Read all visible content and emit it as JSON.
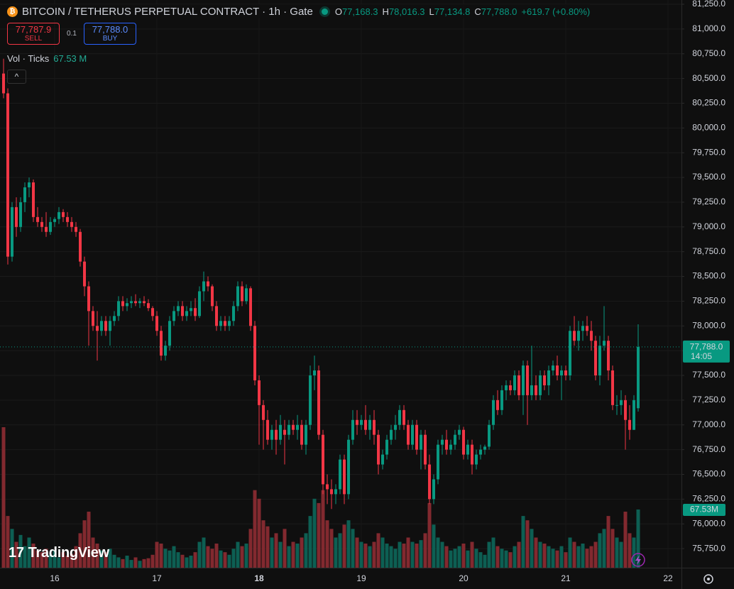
{
  "chart_data": {
    "type": "candlestick",
    "title": "BITCOIN / TETHERUS PERPETUAL CONTRACT · 1h · Gate",
    "ohlc_legend": [
      {
        "key": "O",
        "value": "77,168.3"
      },
      {
        "key": "H",
        "value": "78,016.3"
      },
      {
        "key": "L",
        "value": "77,134.8"
      },
      {
        "key": "C",
        "value": "77,788.0"
      }
    ],
    "change": "+619.7 (+0.80%)",
    "sell": {
      "price": "77,787.9",
      "label": "SELL"
    },
    "spread": "0.1",
    "buy": {
      "price": "77,788.0",
      "label": "BUY"
    },
    "up_color": "#089981",
    "down_color": "#f23645",
    "categories": [
      null,
      null,
      null,
      null,
      null,
      null,
      null,
      null,
      null,
      null,
      null,
      null,
      "16",
      null,
      null,
      null,
      null,
      null,
      null,
      null,
      null,
      null,
      null,
      null,
      null,
      null,
      null,
      null,
      null,
      null,
      null,
      null,
      null,
      null,
      null,
      null,
      "17",
      null,
      null,
      null,
      null,
      null,
      null,
      null,
      null,
      null,
      null,
      null,
      null,
      null,
      null,
      null,
      null,
      null,
      null,
      null,
      null,
      null,
      null,
      null,
      "18",
      null,
      null,
      null,
      null,
      null,
      null,
      null,
      null,
      null,
      null,
      null,
      null,
      null,
      null,
      null,
      null,
      null,
      null,
      null,
      null,
      null,
      null,
      null,
      "19",
      null,
      null,
      null,
      null,
      null,
      null,
      null,
      null,
      null,
      null,
      null,
      null,
      null,
      null,
      null,
      null,
      null,
      null,
      null,
      null,
      null,
      null,
      null,
      "20",
      null,
      null,
      null,
      null,
      null,
      null,
      null,
      null,
      null,
      null,
      null,
      null,
      null,
      null,
      null,
      null,
      null,
      null,
      null,
      null,
      null,
      null,
      null,
      "21",
      null,
      null,
      null,
      null,
      null,
      null,
      null,
      null,
      null,
      null,
      null,
      null,
      null,
      null,
      null,
      null,
      null,
      null,
      null,
      null,
      null,
      null,
      null,
      "22",
      null,
      null,
      null
    ],
    "open": [
      80550,
      80350,
      78700,
      79200,
      79000,
      79250,
      79400,
      79450,
      79100,
      79050,
      79000,
      78950,
      79050,
      79080,
      79150,
      79100,
      79050,
      79000,
      78950,
      78650,
      78400,
      78150,
      78000,
      77950,
      78050,
      77950,
      78050,
      78100,
      78250,
      78200,
      78230,
      78250,
      78230,
      78250,
      78230,
      78180,
      78100,
      77950,
      77700,
      77800,
      78050,
      78150,
      78200,
      78100,
      78150,
      78180,
      78100,
      78350,
      78450,
      78400,
      78200,
      78000,
      78050,
      78000,
      78050,
      78200,
      78400,
      78250,
      78380,
      78000,
      77450,
      77200,
      77050,
      76850,
      76950,
      76850,
      76950,
      76900,
      77000,
      76950,
      77000,
      76800,
      77000,
      77500,
      77550,
      76900,
      76400,
      76350,
      76300,
      76350,
      76650,
      76300,
      76850,
      77050,
      77000,
      77050,
      76950,
      77050,
      76900,
      76600,
      76700,
      76850,
      76950,
      77000,
      77150,
      77000,
      76800,
      77000,
      76750,
      76900,
      76600,
      76250,
      76450,
      76800,
      76850,
      76750,
      76800,
      76900,
      76950,
      76700,
      76800,
      76600,
      76700,
      76750,
      76780,
      77000,
      77250,
      77150,
      77350,
      77400,
      77350,
      77500,
      77300,
      77600,
      77300,
      77400,
      77300,
      77500,
      77400,
      77550,
      77600,
      77500,
      77550,
      77500,
      77950,
      77850,
      77950,
      78000,
      77950,
      77850,
      77500,
      77800,
      77850,
      77550,
      77200,
      77200,
      77250,
      77050,
      76950,
      77168.3,
      null,
      null,
      null,
      null,
      null,
      null,
      null,
      null,
      null,
      null
    ],
    "high": [
      80700,
      80400,
      79250,
      79300,
      79300,
      79450,
      79500,
      79480,
      79200,
      79100,
      79150,
      79100,
      79100,
      79200,
      79180,
      79150,
      79100,
      79050,
      78980,
      78700,
      78450,
      78200,
      78150,
      78100,
      78100,
      78100,
      78150,
      78300,
      78300,
      78280,
      78300,
      78320,
      78280,
      78300,
      78270,
      78200,
      78150,
      78000,
      77850,
      78100,
      78200,
      78250,
      78250,
      78200,
      78250,
      78280,
      78400,
      78550,
      78500,
      78420,
      78250,
      78100,
      78100,
      78100,
      78250,
      78450,
      78450,
      78420,
      78400,
      78050,
      77500,
      77250,
      77150,
      77000,
      77050,
      77100,
      77050,
      77050,
      77050,
      77100,
      77050,
      77050,
      77600,
      77700,
      77600,
      76950,
      76500,
      76450,
      76400,
      76700,
      76700,
      76900,
      77150,
      77150,
      77100,
      77200,
      77100,
      77150,
      76950,
      76750,
      76900,
      77000,
      77100,
      77200,
      77200,
      77050,
      77050,
      77050,
      76950,
      76950,
      76700,
      76500,
      76850,
      76900,
      76950,
      76850,
      76950,
      77000,
      76980,
      76850,
      76850,
      76750,
      76800,
      76800,
      77050,
      77300,
      77350,
      77400,
      77450,
      77450,
      77550,
      77550,
      77650,
      77650,
      77800,
      77500,
      77550,
      77550,
      77600,
      77650,
      77700,
      77600,
      77600,
      78000,
      78100,
      78050,
      78050,
      78100,
      78050,
      77900,
      77900,
      78200,
      77900,
      77600,
      77300,
      77350,
      77300,
      77200,
      77300,
      78016.3,
      null,
      null,
      null,
      null,
      null,
      null,
      null,
      null,
      null,
      null
    ],
    "low": [
      80300,
      78620,
      78650,
      78900,
      78950,
      79150,
      79300,
      79050,
      79000,
      78950,
      78900,
      78920,
      79000,
      79030,
      79050,
      79000,
      78950,
      78900,
      78600,
      78300,
      77800,
      77950,
      77650,
      77900,
      77900,
      77800,
      78000,
      78050,
      78150,
      78150,
      78180,
      78200,
      78180,
      78200,
      78150,
      78050,
      77900,
      77650,
      77650,
      77750,
      78000,
      78100,
      78050,
      78050,
      78100,
      78050,
      78080,
      78250,
      78350,
      78150,
      77950,
      77950,
      77950,
      77950,
      78000,
      78150,
      78200,
      78220,
      77950,
      77400,
      76800,
      76750,
      76800,
      76750,
      76700,
      76800,
      76600,
      76850,
      76900,
      76850,
      76750,
      76700,
      76950,
      77350,
      76850,
      76300,
      76200,
      76150,
      76200,
      76300,
      76200,
      76250,
      76800,
      76900,
      76950,
      76900,
      76850,
      76800,
      76500,
      76550,
      76650,
      76800,
      76850,
      76950,
      76950,
      76750,
      76750,
      76700,
      76550,
      76550,
      76200,
      76200,
      76400,
      76700,
      76700,
      76700,
      76750,
      76850,
      76650,
      76650,
      76500,
      76550,
      76650,
      76700,
      76750,
      76950,
      77100,
      77100,
      77250,
      77300,
      77300,
      77250,
      77100,
      77000,
      77250,
      77250,
      77250,
      77350,
      77300,
      77500,
      77450,
      77250,
      77450,
      77450,
      77800,
      77750,
      77850,
      77900,
      77750,
      77450,
      77400,
      77750,
      77450,
      77150,
      77100,
      77100,
      76750,
      76850,
      76950,
      77134.8,
      null,
      null,
      null,
      null,
      null,
      null,
      null,
      null,
      null,
      null
    ],
    "close": [
      80350,
      78700,
      79200,
      79000,
      79250,
      79400,
      79450,
      79100,
      79050,
      79000,
      78950,
      79050,
      79080,
      79150,
      79100,
      79050,
      79000,
      78950,
      78650,
      78400,
      78150,
      78000,
      77950,
      78050,
      77950,
      78050,
      78100,
      78250,
      78200,
      78230,
      78250,
      78230,
      78250,
      78230,
      78180,
      78100,
      77950,
      77700,
      77800,
      78050,
      78150,
      78200,
      78100,
      78150,
      78180,
      78100,
      78350,
      78450,
      78400,
      78200,
      78000,
      78050,
      78000,
      78050,
      78200,
      78400,
      78250,
      78380,
      78000,
      77450,
      77200,
      77050,
      76850,
      76950,
      76850,
      77000,
      76900,
      77000,
      76950,
      77000,
      76800,
      77000,
      77500,
      77550,
      76900,
      76400,
      76350,
      76300,
      76350,
      76650,
      76300,
      76850,
      77050,
      77000,
      77050,
      76950,
      77050,
      76900,
      76600,
      76700,
      76850,
      76950,
      77000,
      77150,
      77000,
      76800,
      77000,
      76750,
      76900,
      76600,
      76250,
      76450,
      76800,
      76850,
      76750,
      76800,
      76900,
      76950,
      76700,
      76800,
      76600,
      76700,
      76750,
      76780,
      77000,
      77250,
      77150,
      77350,
      77400,
      77350,
      77500,
      77300,
      77600,
      77300,
      77400,
      77300,
      77500,
      77400,
      77550,
      77600,
      77500,
      77550,
      77500,
      77950,
      77850,
      77950,
      78000,
      77950,
      77850,
      77500,
      77800,
      77850,
      77550,
      77200,
      77200,
      77250,
      77050,
      76950,
      77250,
      77788.0,
      null,
      null,
      null,
      null,
      null,
      null,
      null,
      null,
      null,
      null
    ],
    "volume": {
      "name": "Vol · Ticks",
      "values": [
        163,
        60,
        45,
        30,
        38,
        25,
        35,
        28,
        20,
        18,
        22,
        15,
        20,
        12,
        18,
        14,
        16,
        25,
        40,
        55,
        65,
        35,
        28,
        20,
        18,
        22,
        15,
        12,
        10,
        14,
        9,
        12,
        8,
        10,
        11,
        15,
        30,
        28,
        22,
        20,
        25,
        18,
        15,
        12,
        14,
        18,
        30,
        35,
        25,
        22,
        28,
        20,
        18,
        15,
        22,
        30,
        25,
        28,
        45,
        90,
        80,
        55,
        48,
        35,
        40,
        30,
        45,
        25,
        30,
        28,
        35,
        40,
        60,
        80,
        75,
        90,
        55,
        45,
        35,
        40,
        50,
        55,
        45,
        35,
        30,
        28,
        25,
        30,
        40,
        35,
        28,
        25,
        22,
        30,
        28,
        35,
        30,
        28,
        32,
        40,
        75,
        50,
        35,
        30,
        25,
        20,
        22,
        25,
        28,
        20,
        30,
        22,
        18,
        15,
        30,
        35,
        25,
        22,
        20,
        18,
        25,
        30,
        60,
        55,
        45,
        35,
        30,
        28,
        25,
        22,
        20,
        25,
        18,
        35,
        30,
        25,
        28,
        22,
        25,
        30,
        40,
        45,
        60,
        45,
        35,
        30,
        65,
        40,
        35,
        67.53,
        null,
        null,
        null,
        null,
        null,
        null,
        null,
        null,
        null,
        null
      ],
      "value_label": "67.53 M",
      "axis_label": "67.53M",
      "up_color": "#0d5f53",
      "down_color": "#82292f"
    },
    "ylim": [
      75557,
      81293
    ],
    "yticks": [
      {
        "value": 75750,
        "label": "75,750.0"
      },
      {
        "value": 76000,
        "label": "76,000.0"
      },
      {
        "value": 76250,
        "label": "76,250.0"
      },
      {
        "value": 76500,
        "label": "76,500.0"
      },
      {
        "value": 76750,
        "label": "76,750.0"
      },
      {
        "value": 77000,
        "label": "77,000.0"
      },
      {
        "value": 77250,
        "label": "77,250.0"
      },
      {
        "value": 77500,
        "label": "77,500.0"
      },
      {
        "value": 77750,
        "label": "77,750.0"
      },
      {
        "value": 78000,
        "label": "78,000.0"
      },
      {
        "value": 78250,
        "label": "78,250.0"
      },
      {
        "value": 78500,
        "label": "78,500.0"
      },
      {
        "value": 78750,
        "label": "78,750.0"
      },
      {
        "value": 79000,
        "label": "79,000.0"
      },
      {
        "value": 79250,
        "label": "79,250.0"
      },
      {
        "value": 79500,
        "label": "79,500.0"
      },
      {
        "value": 79750,
        "label": "79,750.0"
      },
      {
        "value": 80000,
        "label": "80,000.0"
      },
      {
        "value": 80250,
        "label": "80,250.0"
      },
      {
        "value": 80500,
        "label": "80,500.0"
      },
      {
        "value": 80750,
        "label": "80,750.0"
      },
      {
        "value": 81000,
        "label": "81,000.0"
      },
      {
        "value": 81250,
        "label": "81,250.0"
      }
    ],
    "last_price": {
      "value": 77788.0,
      "label": "77,788.0",
      "countdown": "14:05"
    },
    "grid": true
  },
  "branding": "TradingView"
}
